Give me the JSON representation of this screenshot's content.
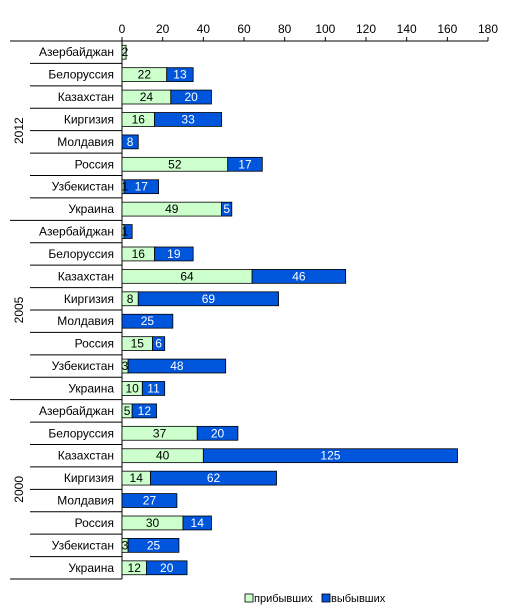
{
  "chart_data": {
    "type": "bar",
    "orientation": "horizontal",
    "stacked": true,
    "title": "",
    "xlabel": "",
    "ylabel": "",
    "xlim": [
      0,
      180
    ],
    "x_ticks": [
      "0",
      "20",
      "40",
      "60",
      "80",
      "100",
      "120",
      "140",
      "160",
      "180"
    ],
    "grid": false,
    "legend_position": "bottom-right",
    "colors": {
      "arrived": "#ccffcc",
      "departed": "#0055dd",
      "border": "#000000"
    },
    "series": [
      {
        "name": "прибывших",
        "key": "arrived"
      },
      {
        "name": "выбывших",
        "key": "departed"
      }
    ],
    "groups": [
      {
        "year": "2012",
        "rows": [
          {
            "label": "Азербайджан",
            "arrived": 2,
            "departed": 0,
            "arrived_label": "2",
            "departed_label": ""
          },
          {
            "label": "Белоруссия",
            "arrived": 22,
            "departed": 13,
            "arrived_label": "22",
            "departed_label": "13"
          },
          {
            "label": "Казахстан",
            "arrived": 24,
            "departed": 20,
            "arrived_label": "24",
            "departed_label": "20"
          },
          {
            "label": "Киргизия",
            "arrived": 16,
            "departed": 33,
            "arrived_label": "16",
            "departed_label": "33"
          },
          {
            "label": "Молдавия",
            "arrived": 0,
            "departed": 8,
            "arrived_label": "",
            "departed_label": "8"
          },
          {
            "label": "Россия",
            "arrived": 52,
            "departed": 17,
            "arrived_label": "52",
            "departed_label": "17"
          },
          {
            "label": "Узбекистан",
            "arrived": 1,
            "departed": 17,
            "arrived_label": "1",
            "departed_label": "17"
          },
          {
            "label": "Украина",
            "arrived": 49,
            "departed": 5,
            "arrived_label": "49",
            "departed_label": "5"
          }
        ]
      },
      {
        "year": "2005",
        "rows": [
          {
            "label": "Азербайджан",
            "arrived": 1,
            "departed": 4,
            "arrived_label": "1",
            "departed_label": ""
          },
          {
            "label": "Белоруссия",
            "arrived": 16,
            "departed": 19,
            "arrived_label": "16",
            "departed_label": "19"
          },
          {
            "label": "Казахстан",
            "arrived": 64,
            "departed": 46,
            "arrived_label": "64",
            "departed_label": "46"
          },
          {
            "label": "Киргизия",
            "arrived": 8,
            "departed": 69,
            "arrived_label": "8",
            "departed_label": "69"
          },
          {
            "label": "Молдавия",
            "arrived": 0,
            "departed": 25,
            "arrived_label": "",
            "departed_label": "25"
          },
          {
            "label": "Россия",
            "arrived": 15,
            "departed": 6,
            "arrived_label": "15",
            "departed_label": "6"
          },
          {
            "label": "Узбекистан",
            "arrived": 3,
            "departed": 48,
            "arrived_label": "3",
            "departed_label": "48"
          },
          {
            "label": "Украина",
            "arrived": 10,
            "departed": 11,
            "arrived_label": "10",
            "departed_label": "11"
          }
        ]
      },
      {
        "year": "2000",
        "rows": [
          {
            "label": "Азербайджан",
            "arrived": 5,
            "departed": 12,
            "arrived_label": "5",
            "departed_label": "12"
          },
          {
            "label": "Белоруссия",
            "arrived": 37,
            "departed": 20,
            "arrived_label": "37",
            "departed_label": "20"
          },
          {
            "label": "Казахстан",
            "arrived": 40,
            "departed": 125,
            "arrived_label": "40",
            "departed_label": "125"
          },
          {
            "label": "Киргизия",
            "arrived": 14,
            "departed": 62,
            "arrived_label": "14",
            "departed_label": "62"
          },
          {
            "label": "Молдавия",
            "arrived": 0,
            "departed": 27,
            "arrived_label": "",
            "departed_label": "27"
          },
          {
            "label": "Россия",
            "arrived": 30,
            "departed": 14,
            "arrived_label": "30",
            "departed_label": "14"
          },
          {
            "label": "Узбекистан",
            "arrived": 3,
            "departed": 25,
            "arrived_label": "3",
            "departed_label": "25"
          },
          {
            "label": "Украина",
            "arrived": 12,
            "departed": 20,
            "arrived_label": "12",
            "departed_label": "20"
          }
        ]
      }
    ]
  }
}
